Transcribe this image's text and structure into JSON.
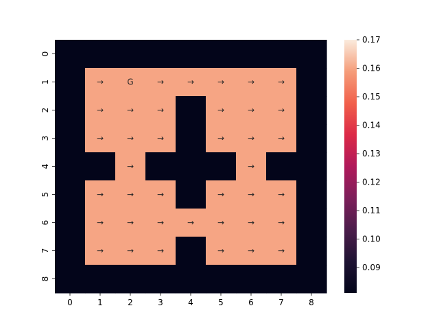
{
  "chart_data": {
    "type": "heatmap",
    "title": "",
    "xlabel": "",
    "ylabel": "",
    "x_tick_labels": [
      "0",
      "1",
      "2",
      "3",
      "4",
      "5",
      "6",
      "7",
      "8"
    ],
    "y_tick_labels": [
      "0",
      "1",
      "2",
      "3",
      "4",
      "5",
      "6",
      "7",
      "8"
    ],
    "values": [
      [
        0.0811,
        0.0811,
        0.0811,
        0.0811,
        0.0811,
        0.0811,
        0.0811,
        0.0811,
        0.0811
      ],
      [
        0.0811,
        0.16,
        0.16,
        0.16,
        0.16,
        0.16,
        0.16,
        0.16,
        0.0811
      ],
      [
        0.0811,
        0.16,
        0.16,
        0.16,
        0.0811,
        0.16,
        0.16,
        0.16,
        0.0811
      ],
      [
        0.0811,
        0.16,
        0.16,
        0.16,
        0.0811,
        0.16,
        0.16,
        0.16,
        0.0811
      ],
      [
        0.0811,
        0.0811,
        0.16,
        0.0811,
        0.0811,
        0.0811,
        0.16,
        0.0811,
        0.0811
      ],
      [
        0.0811,
        0.16,
        0.16,
        0.16,
        0.0811,
        0.16,
        0.16,
        0.16,
        0.0811
      ],
      [
        0.0811,
        0.16,
        0.16,
        0.16,
        0.16,
        0.16,
        0.16,
        0.16,
        0.0811
      ],
      [
        0.0811,
        0.16,
        0.16,
        0.16,
        0.0811,
        0.16,
        0.16,
        0.16,
        0.0811
      ],
      [
        0.0811,
        0.0811,
        0.0811,
        0.0811,
        0.0811,
        0.0811,
        0.0811,
        0.0811,
        0.0811
      ]
    ],
    "annotations": [
      [
        "",
        "",
        "",
        "",
        "",
        "",
        "",
        "",
        ""
      ],
      [
        "",
        "→",
        "G",
        "→",
        "→",
        "→",
        "→",
        "→",
        ""
      ],
      [
        "",
        "→",
        "→",
        "→",
        "",
        "→",
        "→",
        "→",
        ""
      ],
      [
        "",
        "→",
        "→",
        "→",
        "",
        "→",
        "→",
        "→",
        ""
      ],
      [
        "",
        "",
        "→",
        "",
        "",
        "",
        "→",
        "",
        ""
      ],
      [
        "",
        "→",
        "→",
        "→",
        "",
        "→",
        "→",
        "→",
        ""
      ],
      [
        "",
        "→",
        "→",
        "→",
        "→",
        "→",
        "→",
        "→",
        ""
      ],
      [
        "",
        "→",
        "→",
        "→",
        "",
        "→",
        "→",
        "→",
        ""
      ],
      [
        "",
        "",
        "",
        "",
        "",
        "",
        "",
        "",
        ""
      ]
    ],
    "colorbar": {
      "vmin": 0.0811,
      "vmax": 0.17,
      "ticks": [
        "0.09",
        "0.10",
        "0.11",
        "0.12",
        "0.13",
        "0.14",
        "0.15",
        "0.16",
        "0.17"
      ],
      "colormap": "rocket"
    },
    "grid": false,
    "legend": "colorbar-right"
  }
}
